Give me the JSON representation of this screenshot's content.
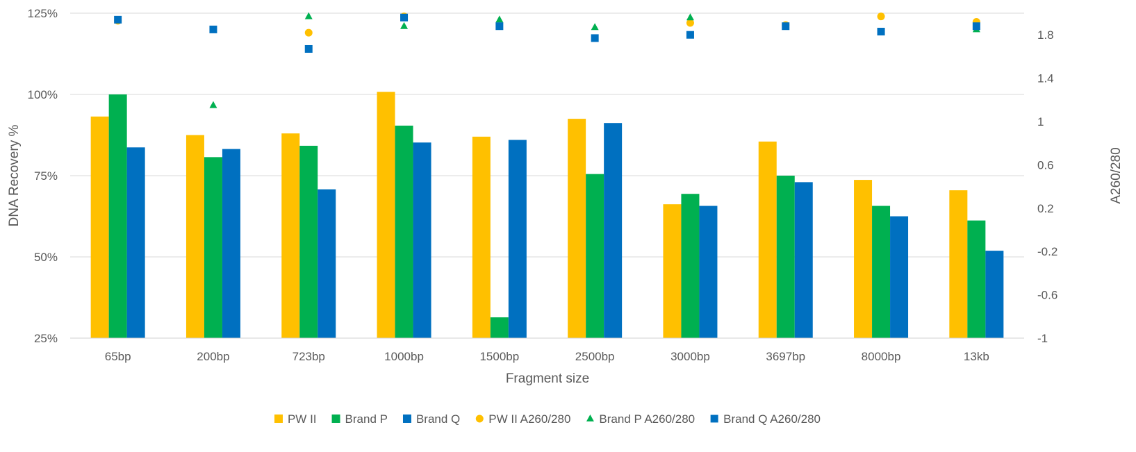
{
  "chart_data": {
    "type": "bar",
    "categories": [
      "65bp",
      "200bp",
      "723bp",
      "1000bp",
      "1500bp",
      "2500bp",
      "3000bp",
      "3697bp",
      "8000bp",
      "13kb"
    ],
    "xlabel": "Fragment size",
    "ylabel": "DNA Recovery %",
    "y2label": "A260/280",
    "ylim": [
      25,
      125
    ],
    "y_ticks": [
      "25%",
      "50%",
      "75%",
      "100%",
      "125%"
    ],
    "y2lim": [
      -1,
      2
    ],
    "y2_ticks": [
      "-1",
      "-0.6",
      "-0.2",
      "0.2",
      "0.6",
      "1",
      "1.4",
      "1.8"
    ],
    "grid": true,
    "legend_position": "bottom",
    "series": [
      {
        "name": "PW II",
        "kind": "bar",
        "axis": "left",
        "color": "#FFC000",
        "values": [
          93.2,
          87.5,
          88.0,
          100.8,
          87.0,
          92.5,
          66.2,
          85.5,
          73.7,
          70.5
        ]
      },
      {
        "name": "Brand P",
        "kind": "bar",
        "axis": "left",
        "color": "#00B050",
        "values": [
          100.0,
          80.7,
          84.2,
          90.4,
          31.4,
          75.5,
          69.4,
          75.0,
          65.7,
          61.2
        ]
      },
      {
        "name": "Brand Q",
        "kind": "bar",
        "axis": "left",
        "color": "#0070C0",
        "values": [
          83.7,
          83.2,
          70.8,
          85.2,
          86.0,
          91.2,
          65.7,
          73.0,
          62.5,
          51.9
        ]
      },
      {
        "name": "PW II A260/280",
        "kind": "scatter",
        "marker": "circle",
        "axis": "right",
        "color": "#FFC000",
        "values": [
          1.93,
          null,
          1.82,
          1.97,
          null,
          null,
          1.91,
          1.89,
          1.97,
          1.92
        ]
      },
      {
        "name": "Brand P A260/280",
        "kind": "scatter",
        "marker": "triangle",
        "axis": "right",
        "color": "#00B050",
        "values": [
          null,
          1.15,
          1.97,
          1.88,
          1.94,
          1.87,
          1.96,
          null,
          null,
          1.85
        ]
      },
      {
        "name": "Brand Q A260/280",
        "kind": "scatter",
        "marker": "square",
        "axis": "right",
        "color": "#0070C0",
        "values": [
          1.94,
          1.85,
          1.67,
          1.96,
          1.88,
          1.77,
          1.8,
          1.88,
          1.83,
          1.88
        ]
      }
    ]
  }
}
